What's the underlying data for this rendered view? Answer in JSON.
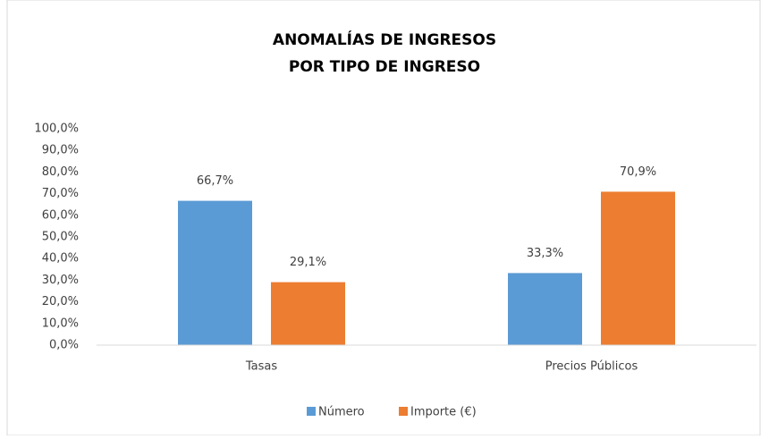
{
  "chart_data": {
    "type": "bar",
    "title": [
      "ANOMALÍAS DE INGRESOS",
      "POR TIPO DE INGRESO"
    ],
    "categories": [
      "Tasas",
      "Precios Públicos"
    ],
    "series": [
      {
        "name": "Número",
        "color": "#5b9bd5",
        "values": [
          66.7,
          33.3
        ],
        "value_labels": [
          "66,7%",
          "33,3%"
        ]
      },
      {
        "name": "Importe  (€)",
        "color": "#ed7d31",
        "values": [
          29.1,
          70.9
        ],
        "value_labels": [
          "29,1%",
          "70,9%"
        ]
      }
    ],
    "ylim": [
      0,
      100
    ],
    "yticks": [
      {
        "value": 0,
        "label": "0,0%"
      },
      {
        "value": 10,
        "label": "10,0%"
      },
      {
        "value": 20,
        "label": "20,0%"
      },
      {
        "value": 30,
        "label": "30,0%"
      },
      {
        "value": 40,
        "label": "40,0%"
      },
      {
        "value": 50,
        "label": "50,0%"
      },
      {
        "value": 60,
        "label": "60,0%"
      },
      {
        "value": 70,
        "label": "70,0%"
      },
      {
        "value": 80,
        "label": "80,0%"
      },
      {
        "value": 90,
        "label": "90,0%"
      },
      {
        "value": 100,
        "label": "100,0%"
      }
    ],
    "grid": false,
    "legend": "bottom"
  }
}
